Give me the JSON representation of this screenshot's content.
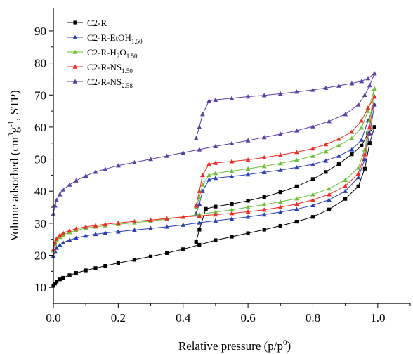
{
  "chart_data": {
    "type": "line",
    "xlabel": "Relative pressure (p/p0)",
    "xlabel_parts": {
      "main": "Relative pressure (p/p",
      "sup": "0",
      "close": ")"
    },
    "ylabel": "Volume adsorbed (cm3g-1, STP)",
    "ylabel_parts": {
      "a": "Volume adsorbed (cm",
      "sup1": "3",
      "b": "g",
      "sup2": "-1",
      "c": ", STP)"
    },
    "xlim": [
      0.0,
      1.1
    ],
    "ylim": [
      5,
      97
    ],
    "xticks": [
      0.0,
      0.2,
      0.4,
      0.6,
      0.8,
      1.0
    ],
    "xtick_labels": [
      "0.0",
      "0.2",
      "0.4",
      "0.6",
      "0.8",
      "1.0"
    ],
    "yticks": [
      10,
      20,
      30,
      40,
      50,
      60,
      70,
      80,
      90
    ],
    "ytick_labels": [
      "10",
      "20",
      "30",
      "40",
      "50",
      "60",
      "70",
      "80",
      "90"
    ],
    "grid": false,
    "legend_position": "top-left",
    "series": [
      {
        "name": "C2-R",
        "legend": {
          "main": "C2-R",
          "sub": ""
        },
        "color": "#000000",
        "marker": "square",
        "adsorption": [
          [
            0.0,
            10.5
          ],
          [
            0.005,
            11.2
          ],
          [
            0.01,
            11.8
          ],
          [
            0.02,
            12.5
          ],
          [
            0.03,
            13.0
          ],
          [
            0.05,
            13.8
          ],
          [
            0.07,
            14.5
          ],
          [
            0.1,
            15.3
          ],
          [
            0.13,
            16.0
          ],
          [
            0.16,
            16.7
          ],
          [
            0.2,
            17.6
          ],
          [
            0.25,
            18.6
          ],
          [
            0.3,
            19.6
          ],
          [
            0.35,
            20.7
          ],
          [
            0.4,
            21.9
          ],
          [
            0.45,
            23.3
          ],
          [
            0.5,
            24.7
          ],
          [
            0.55,
            25.8
          ],
          [
            0.6,
            26.9
          ],
          [
            0.65,
            28.0
          ],
          [
            0.7,
            29.2
          ],
          [
            0.75,
            30.5
          ],
          [
            0.8,
            32.0
          ],
          [
            0.85,
            34.3
          ],
          [
            0.9,
            37.6
          ],
          [
            0.94,
            41.5
          ],
          [
            0.96,
            47.0
          ],
          [
            0.975,
            55.0
          ],
          [
            0.99,
            60.0
          ]
        ],
        "desorption": [
          [
            0.99,
            60.0
          ],
          [
            0.97,
            58.0
          ],
          [
            0.95,
            54.2
          ],
          [
            0.92,
            51.5
          ],
          [
            0.88,
            48.5
          ],
          [
            0.84,
            46.0
          ],
          [
            0.8,
            43.8
          ],
          [
            0.75,
            41.5
          ],
          [
            0.7,
            39.7
          ],
          [
            0.65,
            38.2
          ],
          [
            0.6,
            37.0
          ],
          [
            0.55,
            36.0
          ],
          [
            0.5,
            35.2
          ],
          [
            0.47,
            34.5
          ],
          [
            0.45,
            28.0
          ],
          [
            0.44,
            24.2
          ]
        ]
      },
      {
        "name": "C2-R-EtOH1.50",
        "legend": {
          "main": "C2-R-EtOH",
          "sub": "1.50"
        },
        "color": "#2a3fb5",
        "marker": "triangle",
        "adsorption": [
          [
            0.0,
            19.8
          ],
          [
            0.005,
            21.3
          ],
          [
            0.01,
            22.3
          ],
          [
            0.02,
            23.2
          ],
          [
            0.03,
            24.0
          ],
          [
            0.05,
            24.8
          ],
          [
            0.07,
            25.4
          ],
          [
            0.1,
            26.1
          ],
          [
            0.13,
            26.6
          ],
          [
            0.16,
            27.0
          ],
          [
            0.2,
            27.4
          ],
          [
            0.25,
            27.9
          ],
          [
            0.3,
            28.4
          ],
          [
            0.35,
            28.9
          ],
          [
            0.4,
            29.5
          ],
          [
            0.45,
            30.2
          ],
          [
            0.5,
            30.8
          ],
          [
            0.55,
            31.4
          ],
          [
            0.6,
            32.0
          ],
          [
            0.65,
            32.7
          ],
          [
            0.7,
            33.5
          ],
          [
            0.75,
            34.4
          ],
          [
            0.8,
            35.6
          ],
          [
            0.85,
            37.3
          ],
          [
            0.9,
            40.0
          ],
          [
            0.94,
            44.3
          ],
          [
            0.96,
            50.0
          ],
          [
            0.975,
            58.0
          ],
          [
            0.99,
            67.0
          ]
        ],
        "desorption": [
          [
            0.99,
            67.0
          ],
          [
            0.97,
            62.0
          ],
          [
            0.95,
            56.0
          ],
          [
            0.92,
            53.0
          ],
          [
            0.88,
            51.0
          ],
          [
            0.84,
            49.5
          ],
          [
            0.8,
            48.4
          ],
          [
            0.75,
            47.4
          ],
          [
            0.7,
            46.6
          ],
          [
            0.65,
            45.9
          ],
          [
            0.6,
            45.2
          ],
          [
            0.55,
            44.6
          ],
          [
            0.5,
            44.1
          ],
          [
            0.48,
            43.6
          ],
          [
            0.46,
            40.0
          ],
          [
            0.45,
            36.0
          ],
          [
            0.44,
            33.0
          ]
        ]
      },
      {
        "name": "C2-R-H2O1.50",
        "legend": {
          "main": "C2-R-H",
          "sub1": "2",
          "main2": "O",
          "sub": "1.50"
        },
        "color": "#6dbf3a",
        "marker": "triangle",
        "adsorption": [
          [
            0.0,
            21.5
          ],
          [
            0.005,
            23.5
          ],
          [
            0.01,
            24.6
          ],
          [
            0.02,
            25.7
          ],
          [
            0.03,
            26.4
          ],
          [
            0.05,
            27.2
          ],
          [
            0.07,
            27.8
          ],
          [
            0.1,
            28.5
          ],
          [
            0.13,
            28.9
          ],
          [
            0.16,
            29.3
          ],
          [
            0.2,
            29.7
          ],
          [
            0.25,
            30.2
          ],
          [
            0.3,
            30.7
          ],
          [
            0.35,
            31.3
          ],
          [
            0.4,
            32.0
          ],
          [
            0.45,
            32.8
          ],
          [
            0.5,
            33.5
          ],
          [
            0.55,
            34.2
          ],
          [
            0.6,
            35.0
          ],
          [
            0.65,
            35.8
          ],
          [
            0.7,
            36.7
          ],
          [
            0.75,
            37.7
          ],
          [
            0.8,
            39.0
          ],
          [
            0.85,
            40.8
          ],
          [
            0.9,
            43.5
          ],
          [
            0.94,
            47.3
          ],
          [
            0.96,
            53.0
          ],
          [
            0.975,
            62.0
          ],
          [
            0.99,
            72.0
          ]
        ],
        "desorption": [
          [
            0.99,
            72.0
          ],
          [
            0.97,
            65.0
          ],
          [
            0.95,
            59.8
          ],
          [
            0.92,
            56.5
          ],
          [
            0.88,
            54.3
          ],
          [
            0.84,
            52.4
          ],
          [
            0.8,
            51.0
          ],
          [
            0.75,
            49.7
          ],
          [
            0.7,
            48.7
          ],
          [
            0.65,
            47.8
          ],
          [
            0.6,
            47.0
          ],
          [
            0.55,
            46.3
          ],
          [
            0.5,
            45.6
          ],
          [
            0.48,
            45.0
          ],
          [
            0.46,
            42.0
          ],
          [
            0.45,
            38.0
          ],
          [
            0.44,
            35.0
          ]
        ]
      },
      {
        "name": "C2-R-NS1.50",
        "legend": {
          "main": "C2-R-NS",
          "sub": "1.50"
        },
        "color": "#ee2b24",
        "marker": "triangle",
        "adsorption": [
          [
            0.0,
            21.8
          ],
          [
            0.005,
            24.0
          ],
          [
            0.01,
            25.2
          ],
          [
            0.02,
            26.3
          ],
          [
            0.03,
            27.0
          ],
          [
            0.05,
            27.7
          ],
          [
            0.07,
            28.3
          ],
          [
            0.1,
            28.9
          ],
          [
            0.13,
            29.3
          ],
          [
            0.16,
            29.7
          ],
          [
            0.2,
            30.1
          ],
          [
            0.25,
            30.6
          ],
          [
            0.3,
            31.0
          ],
          [
            0.35,
            31.5
          ],
          [
            0.4,
            32.0
          ],
          [
            0.45,
            32.3
          ],
          [
            0.5,
            32.7
          ],
          [
            0.55,
            33.1
          ],
          [
            0.6,
            33.6
          ],
          [
            0.65,
            34.2
          ],
          [
            0.7,
            35.0
          ],
          [
            0.75,
            36.0
          ],
          [
            0.8,
            37.3
          ],
          [
            0.85,
            39.0
          ],
          [
            0.9,
            41.6
          ],
          [
            0.94,
            45.5
          ],
          [
            0.96,
            51.5
          ],
          [
            0.975,
            60.0
          ],
          [
            0.99,
            69.5
          ]
        ],
        "desorption": [
          [
            0.99,
            69.5
          ],
          [
            0.97,
            66.0
          ],
          [
            0.95,
            62.0
          ],
          [
            0.92,
            58.5
          ],
          [
            0.88,
            56.3
          ],
          [
            0.84,
            54.6
          ],
          [
            0.8,
            53.3
          ],
          [
            0.75,
            52.2
          ],
          [
            0.7,
            51.3
          ],
          [
            0.65,
            50.5
          ],
          [
            0.6,
            49.8
          ],
          [
            0.55,
            49.3
          ],
          [
            0.5,
            48.8
          ],
          [
            0.48,
            48.5
          ],
          [
            0.46,
            45.0
          ],
          [
            0.45,
            40.0
          ],
          [
            0.44,
            35.5
          ]
        ]
      },
      {
        "name": "C2-R-NS2.58",
        "legend": {
          "main": "C2-R-NS",
          "sub": "2.58"
        },
        "color": "#5b3fa6",
        "marker": "triangle",
        "adsorption": [
          [
            0.0,
            33.0
          ],
          [
            0.005,
            35.5
          ],
          [
            0.01,
            37.2
          ],
          [
            0.02,
            39.0
          ],
          [
            0.03,
            40.5
          ],
          [
            0.05,
            42.0
          ],
          [
            0.07,
            43.3
          ],
          [
            0.1,
            44.8
          ],
          [
            0.13,
            46.0
          ],
          [
            0.16,
            46.9
          ],
          [
            0.2,
            48.0
          ],
          [
            0.25,
            49.0
          ],
          [
            0.3,
            50.0
          ],
          [
            0.35,
            51.0
          ],
          [
            0.4,
            52.0
          ],
          [
            0.45,
            53.0
          ],
          [
            0.5,
            54.0
          ],
          [
            0.55,
            54.9
          ],
          [
            0.6,
            55.8
          ],
          [
            0.65,
            56.8
          ],
          [
            0.7,
            57.8
          ],
          [
            0.75,
            58.9
          ],
          [
            0.8,
            60.2
          ],
          [
            0.85,
            61.8
          ],
          [
            0.9,
            64.0
          ],
          [
            0.94,
            67.0
          ],
          [
            0.96,
            70.0
          ],
          [
            0.975,
            73.0
          ],
          [
            0.99,
            76.7
          ]
        ],
        "desorption": [
          [
            0.99,
            76.7
          ],
          [
            0.97,
            75.2
          ],
          [
            0.95,
            74.3
          ],
          [
            0.92,
            73.6
          ],
          [
            0.88,
            72.9
          ],
          [
            0.84,
            72.2
          ],
          [
            0.8,
            71.6
          ],
          [
            0.75,
            71.0
          ],
          [
            0.7,
            70.4
          ],
          [
            0.65,
            69.9
          ],
          [
            0.6,
            69.5
          ],
          [
            0.55,
            69.0
          ],
          [
            0.5,
            68.5
          ],
          [
            0.48,
            68.2
          ],
          [
            0.46,
            64.0
          ],
          [
            0.45,
            60.0
          ],
          [
            0.44,
            56.5
          ]
        ]
      }
    ]
  }
}
